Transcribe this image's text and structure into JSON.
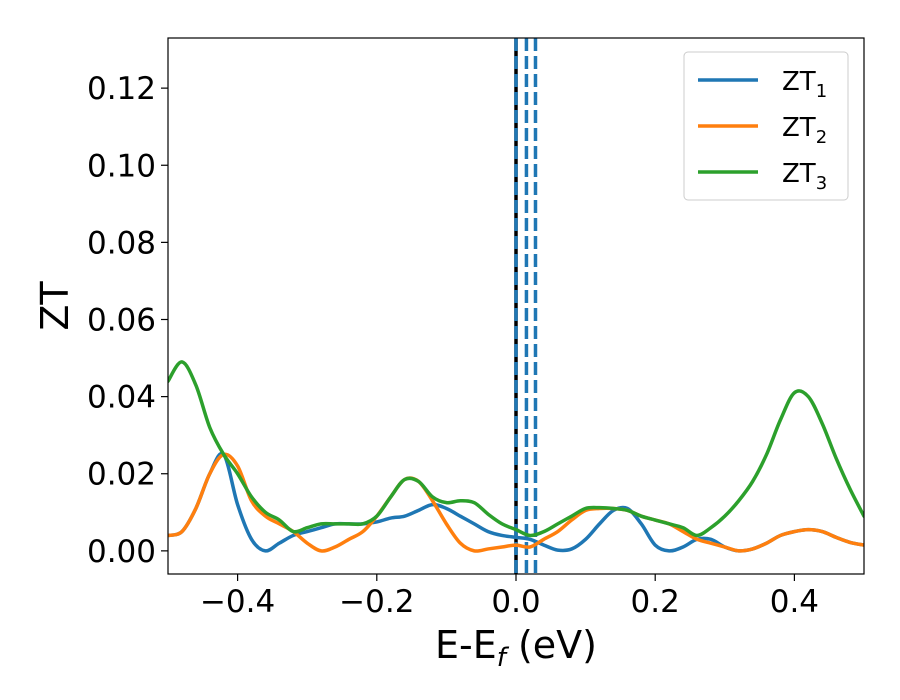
{
  "chart_data": {
    "type": "line",
    "xlabel": "E-E",
    "xlabel_sub": "f",
    "xlabel_unit": " (eV)",
    "ylabel": "ZT",
    "xlim": [
      -0.5,
      0.5
    ],
    "ylim": [
      -0.006,
      0.133
    ],
    "xticks": [
      -0.4,
      -0.2,
      0.0,
      0.2,
      0.4
    ],
    "xtick_labels": [
      "−0.4",
      "−0.2",
      "0.0",
      "0.2",
      "0.4"
    ],
    "yticks": [
      0.0,
      0.02,
      0.04,
      0.06,
      0.08,
      0.1,
      0.12
    ],
    "ytick_labels": [
      "0.00",
      "0.02",
      "0.04",
      "0.06",
      "0.08",
      "0.10",
      "0.12"
    ],
    "grid": false,
    "legend_placement": "top-right",
    "vertical_lines": [
      {
        "x": 0.0,
        "color": "#000000",
        "style": "solid"
      },
      {
        "x": 0.0,
        "color": "#1f77b4",
        "style": "dashed"
      },
      {
        "x": 0.015,
        "color": "#1f77b4",
        "style": "dashed"
      },
      {
        "x": 0.028,
        "color": "#1f77b4",
        "style": "dashed"
      }
    ],
    "series": [
      {
        "name": "ZT",
        "sub": "1",
        "color": "#1f77b4",
        "x": [
          -0.5,
          -0.48,
          -0.46,
          -0.44,
          -0.42,
          -0.4,
          -0.38,
          -0.36,
          -0.34,
          -0.32,
          -0.3,
          -0.28,
          -0.26,
          -0.24,
          -0.22,
          -0.2,
          -0.18,
          -0.16,
          -0.14,
          -0.12,
          -0.1,
          -0.08,
          -0.06,
          -0.04,
          -0.02,
          0.0,
          0.02,
          0.04,
          0.06,
          0.08,
          0.1,
          0.12,
          0.14,
          0.16,
          0.18,
          0.2,
          0.22,
          0.24,
          0.26,
          0.28,
          0.3,
          0.32,
          0.34,
          0.36,
          0.38,
          0.4,
          0.42,
          0.44,
          0.46,
          0.48,
          0.5
        ],
        "values": [
          0.004,
          0.005,
          0.011,
          0.02,
          0.025,
          0.012,
          0.003,
          0.0,
          0.002,
          0.004,
          0.005,
          0.006,
          0.007,
          0.007,
          0.007,
          0.0075,
          0.0085,
          0.009,
          0.0105,
          0.012,
          0.011,
          0.009,
          0.007,
          0.005,
          0.004,
          0.0035,
          0.003,
          0.0015,
          0.0002,
          0.0005,
          0.003,
          0.007,
          0.0105,
          0.011,
          0.007,
          0.0015,
          0.0,
          0.001,
          0.003,
          0.003,
          0.001,
          0.0,
          0.0005,
          0.002,
          0.004,
          0.005,
          0.0055,
          0.005,
          0.0035,
          0.0022,
          0.0015
        ]
      },
      {
        "name": "ZT",
        "sub": "2",
        "color": "#ff7f0e",
        "x": [
          -0.5,
          -0.48,
          -0.46,
          -0.44,
          -0.42,
          -0.4,
          -0.38,
          -0.36,
          -0.34,
          -0.32,
          -0.3,
          -0.28,
          -0.26,
          -0.24,
          -0.22,
          -0.2,
          -0.18,
          -0.16,
          -0.14,
          -0.12,
          -0.1,
          -0.08,
          -0.06,
          -0.04,
          -0.02,
          0.0,
          0.02,
          0.04,
          0.06,
          0.08,
          0.1,
          0.12,
          0.14,
          0.16,
          0.18,
          0.2,
          0.22,
          0.24,
          0.26,
          0.28,
          0.3,
          0.32,
          0.34,
          0.36,
          0.38,
          0.4,
          0.42,
          0.44,
          0.46,
          0.48,
          0.5
        ],
        "values": [
          0.004,
          0.005,
          0.011,
          0.02,
          0.025,
          0.022,
          0.013,
          0.009,
          0.007,
          0.005,
          0.002,
          0.0,
          0.001,
          0.003,
          0.005,
          0.009,
          0.014,
          0.0185,
          0.018,
          0.013,
          0.007,
          0.002,
          0.0,
          0.0005,
          0.001,
          0.0015,
          0.001,
          0.003,
          0.005,
          0.008,
          0.0105,
          0.011,
          0.011,
          0.0105,
          0.009,
          0.008,
          0.007,
          0.005,
          0.003,
          0.002,
          0.001,
          0.0,
          0.0005,
          0.002,
          0.004,
          0.005,
          0.0055,
          0.005,
          0.0035,
          0.0022,
          0.0015
        ]
      },
      {
        "name": "ZT",
        "sub": "3",
        "color": "#2ca02c",
        "x": [
          -0.5,
          -0.48,
          -0.46,
          -0.44,
          -0.42,
          -0.4,
          -0.38,
          -0.36,
          -0.34,
          -0.32,
          -0.3,
          -0.28,
          -0.26,
          -0.24,
          -0.22,
          -0.2,
          -0.18,
          -0.16,
          -0.14,
          -0.12,
          -0.1,
          -0.08,
          -0.06,
          -0.04,
          -0.02,
          0.0,
          0.02,
          0.04,
          0.06,
          0.08,
          0.1,
          0.12,
          0.14,
          0.16,
          0.18,
          0.2,
          0.22,
          0.24,
          0.26,
          0.28,
          0.3,
          0.32,
          0.34,
          0.36,
          0.38,
          0.4,
          0.42,
          0.44,
          0.46,
          0.48,
          0.5
        ],
        "values": [
          0.044,
          0.049,
          0.043,
          0.032,
          0.025,
          0.02,
          0.014,
          0.01,
          0.008,
          0.005,
          0.006,
          0.007,
          0.007,
          0.007,
          0.007,
          0.009,
          0.014,
          0.0185,
          0.018,
          0.014,
          0.0125,
          0.013,
          0.0125,
          0.0095,
          0.007,
          0.0055,
          0.004,
          0.005,
          0.007,
          0.009,
          0.011,
          0.0112,
          0.011,
          0.0105,
          0.009,
          0.008,
          0.007,
          0.006,
          0.004,
          0.006,
          0.009,
          0.013,
          0.018,
          0.025,
          0.034,
          0.041,
          0.04,
          0.033,
          0.024,
          0.016,
          0.009
        ]
      }
    ]
  }
}
